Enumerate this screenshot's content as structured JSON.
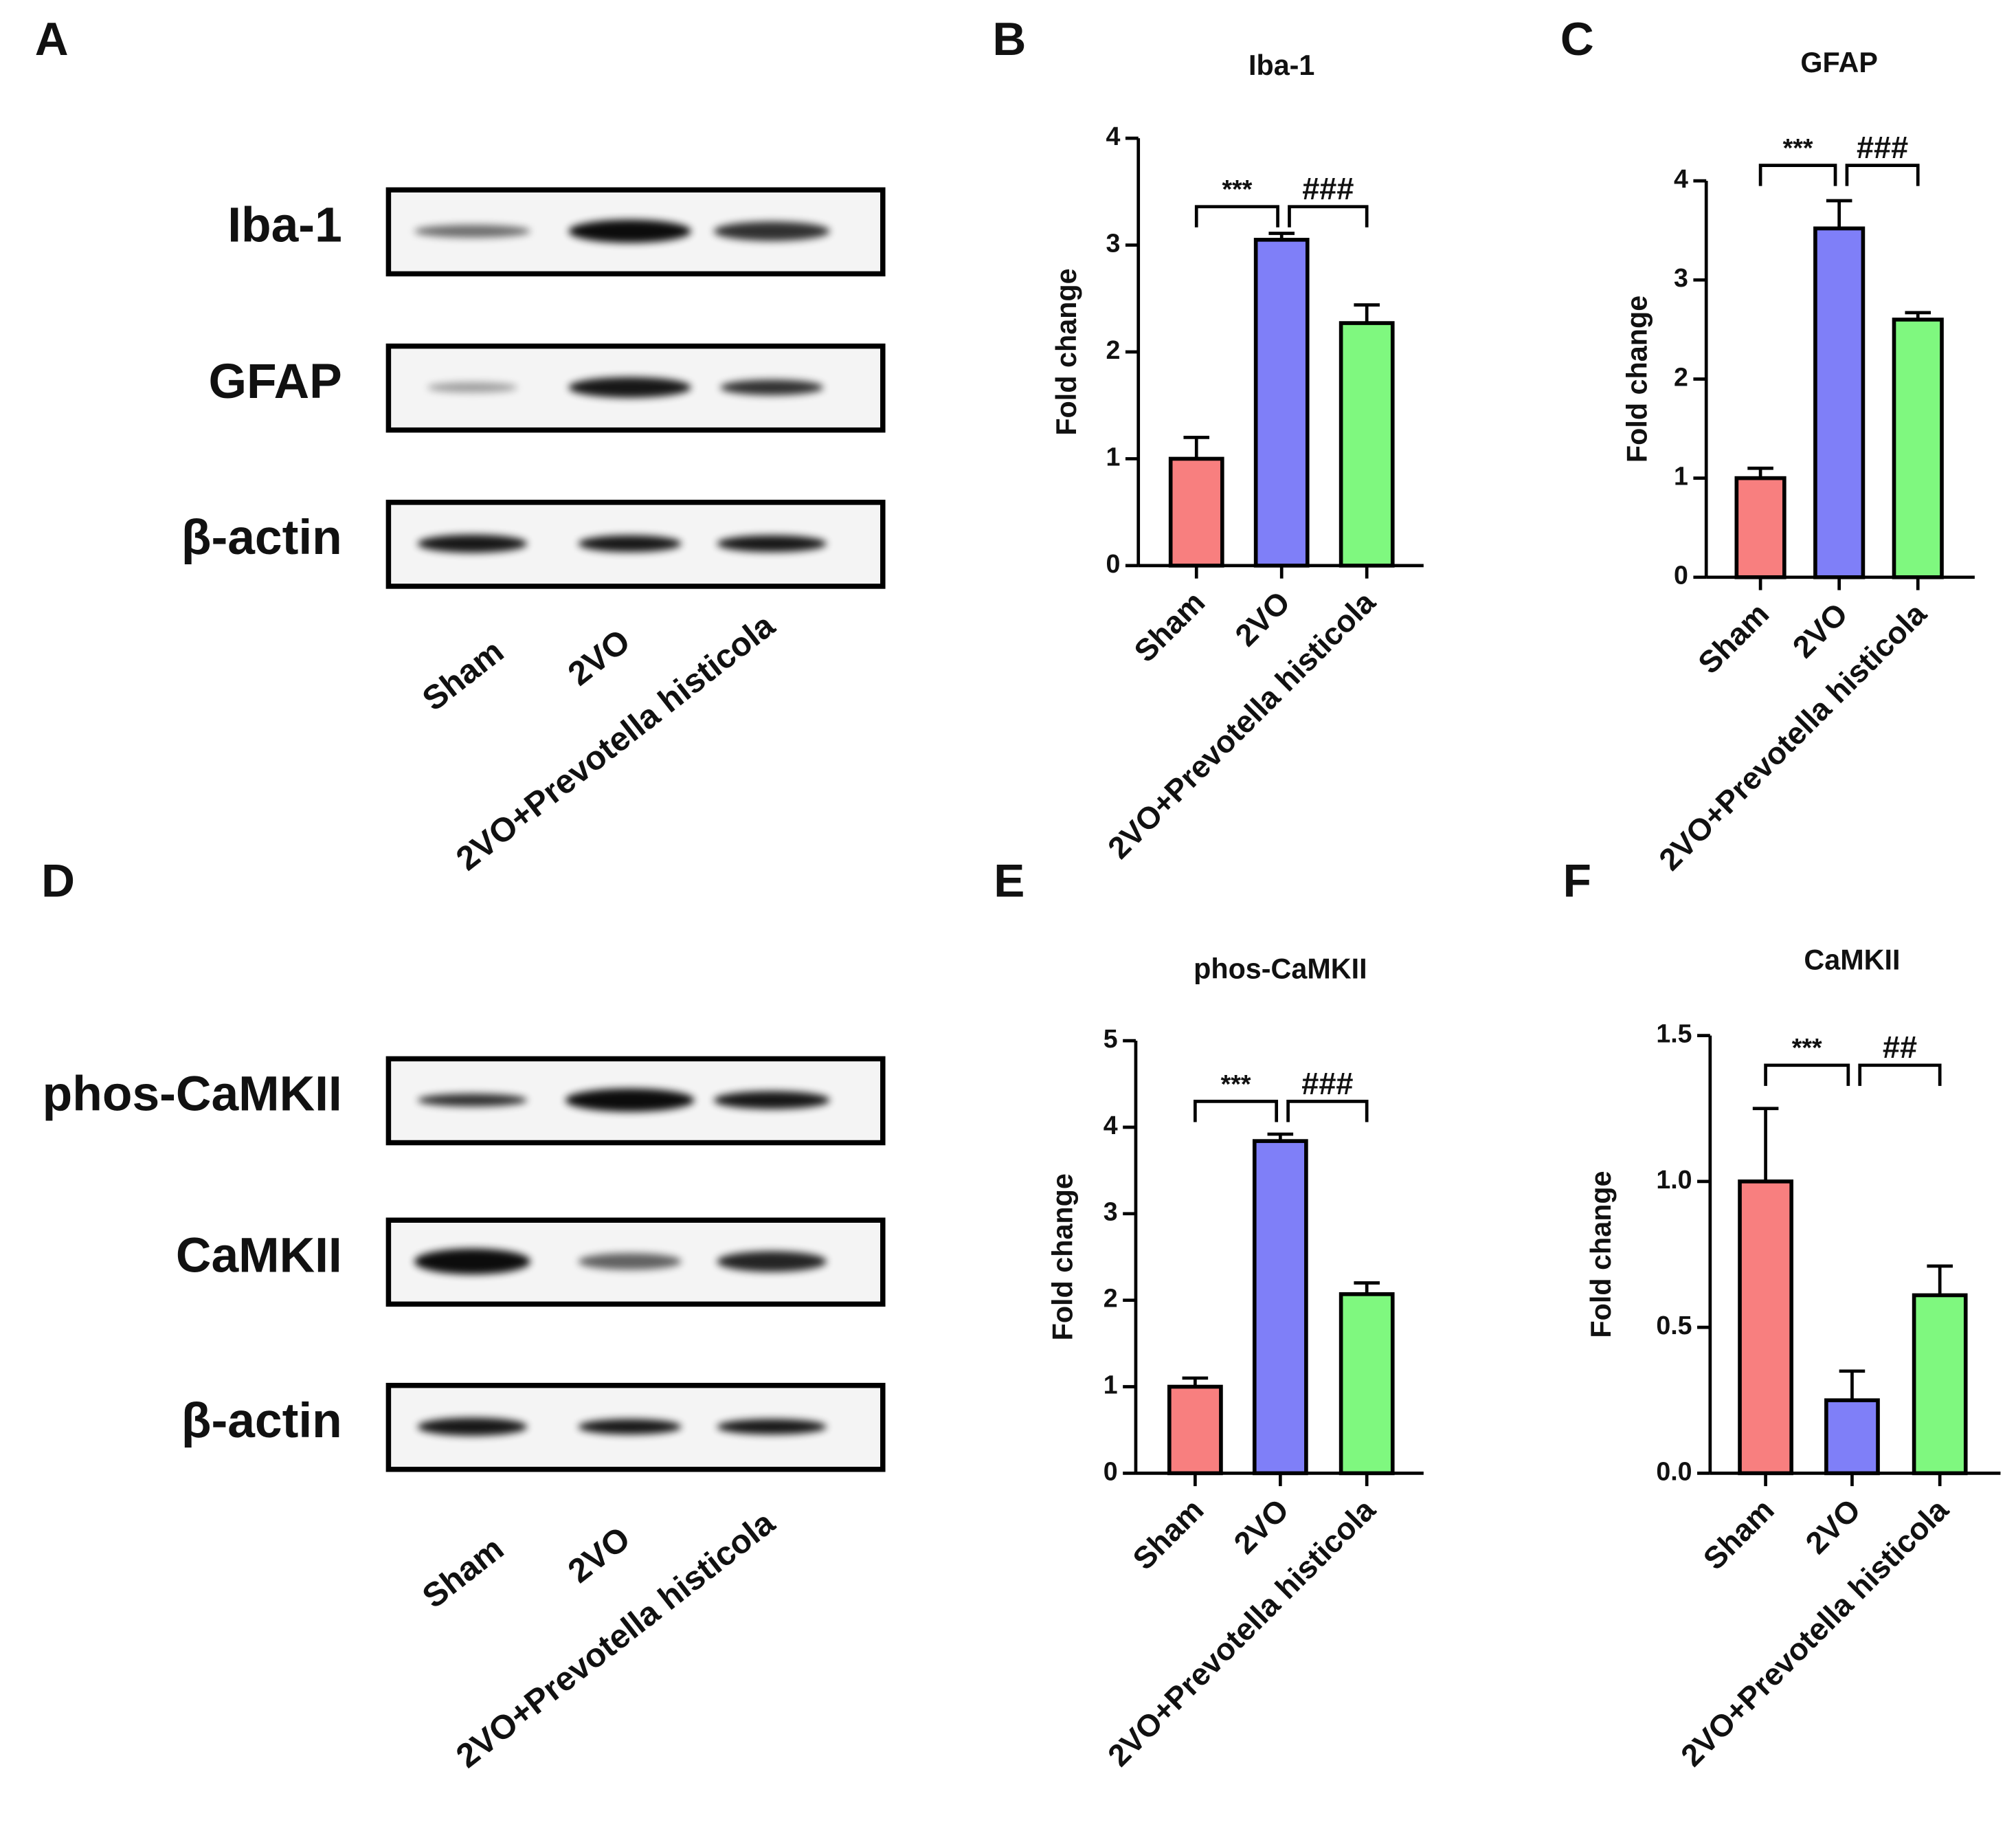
{
  "blots": [
    {
      "letter": "A",
      "rows": [
        "Iba-1",
        "GFAP",
        "β-actin"
      ],
      "lanes": [
        "Sham",
        "2VO",
        "2VO+Prevotella histicola"
      ]
    },
    {
      "letter": "D",
      "rows": [
        "phos-CaMKII",
        "CaMKII",
        "β-actin"
      ],
      "lanes": [
        "Sham",
        "2VO",
        "2VO+Prevotella histicola"
      ]
    }
  ],
  "chart_data": [
    {
      "type": "bar",
      "letter": "B",
      "title": "Iba-1",
      "y_label": "Fold change",
      "categories": [
        "Sham",
        "2VO",
        "2VO+Prevotella histicola"
      ],
      "values": [
        1,
        3.05,
        2.27
      ],
      "errors": [
        0.2,
        0.06,
        0.17
      ],
      "colors": [
        "#f87f7f",
        "#7f7ff8",
        "#7ff87f"
      ],
      "ylim": [
        0,
        4
      ],
      "yticks": [
        0,
        1,
        2,
        3,
        4
      ],
      "annotations": [
        "***",
        "###"
      ]
    },
    {
      "type": "bar",
      "letter": "C",
      "title": "GFAP",
      "y_label": "Fold change",
      "categories": [
        "Sham",
        "2VO",
        "2VO+Prevotella histicola"
      ],
      "values": [
        1,
        3.52,
        2.6
      ],
      "errors": [
        0.1,
        0.28,
        0.07
      ],
      "colors": [
        "#f87f7f",
        "#7f7ff8",
        "#7ff87f"
      ],
      "ylim": [
        0,
        4
      ],
      "yticks": [
        0,
        1,
        2,
        3,
        4
      ],
      "annotations": [
        "***",
        "###"
      ]
    },
    {
      "type": "bar",
      "letter": "E",
      "title": "phos-CaMKII",
      "y_label": "Fold change",
      "categories": [
        "Sham",
        "2VO",
        "2VO+Prevotella histicola"
      ],
      "values": [
        1,
        3.84,
        2.07
      ],
      "errors": [
        0.1,
        0.08,
        0.13
      ],
      "colors": [
        "#f87f7f",
        "#7f7ff8",
        "#7ff87f"
      ],
      "ylim": [
        0,
        5
      ],
      "yticks": [
        0,
        1,
        2,
        3,
        4,
        5
      ],
      "annotations": [
        "***",
        "###"
      ]
    },
    {
      "type": "bar",
      "letter": "F",
      "title": "CaMKII",
      "y_label": "Fold change",
      "categories": [
        "Sham",
        "2VO",
        "2VO+Prevotella histicola"
      ],
      "values": [
        1,
        0.25,
        0.61
      ],
      "errors": [
        0.25,
        0.1,
        0.1
      ],
      "colors": [
        "#f87f7f",
        "#7f7ff8",
        "#7ff87f"
      ],
      "ylim": [
        0,
        1.5
      ],
      "yticks": [
        {
          "value": 0,
          "label": "0.0"
        },
        {
          "value": 0.5,
          "label": "0.5"
        },
        {
          "value": 1,
          "label": "1.0"
        },
        1.5
      ],
      "annotations": [
        "***",
        "##"
      ]
    }
  ]
}
